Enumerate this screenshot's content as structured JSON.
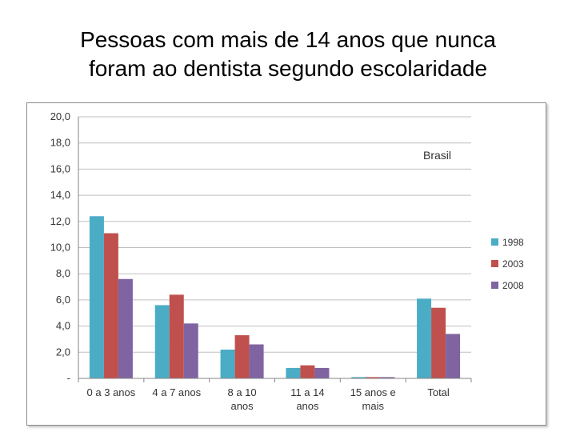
{
  "page": {
    "title_lines": [
      "Pessoas com mais de 14 anos que nunca",
      "foram ao dentista segundo escolaridade"
    ]
  },
  "chart_data": {
    "type": "bar",
    "title": "Pessoas com mais de 14 anos que nunca foram ao dentista segundo escolaridade",
    "annotation": "Brasil",
    "categories": [
      [
        "0 a 3 anos"
      ],
      [
        "4 a 7 anos"
      ],
      [
        "8 a 10",
        "anos"
      ],
      [
        "11 a 14",
        "anos"
      ],
      [
        "15 anos e",
        "mais"
      ],
      [
        "Total"
      ]
    ],
    "series": [
      {
        "name": "1998",
        "color": "#4bacc6",
        "values": [
          12.4,
          5.6,
          2.2,
          0.8,
          0.1,
          6.1
        ]
      },
      {
        "name": "2003",
        "color": "#c0504d",
        "values": [
          11.1,
          6.4,
          3.3,
          1.0,
          0.1,
          5.4
        ]
      },
      {
        "name": "2008",
        "color": "#8064a2",
        "values": [
          7.6,
          4.2,
          2.6,
          0.8,
          0.1,
          3.4
        ]
      }
    ],
    "ylim": [
      0,
      20
    ],
    "y_ticks": [
      "-",
      "2,0",
      "4,0",
      "6,0",
      "8,0",
      "10,0",
      "12,0",
      "14,0",
      "16,0",
      "18,0",
      "20,0"
    ],
    "grid": true,
    "legend_position": "right",
    "xlabel": "",
    "ylabel": ""
  }
}
